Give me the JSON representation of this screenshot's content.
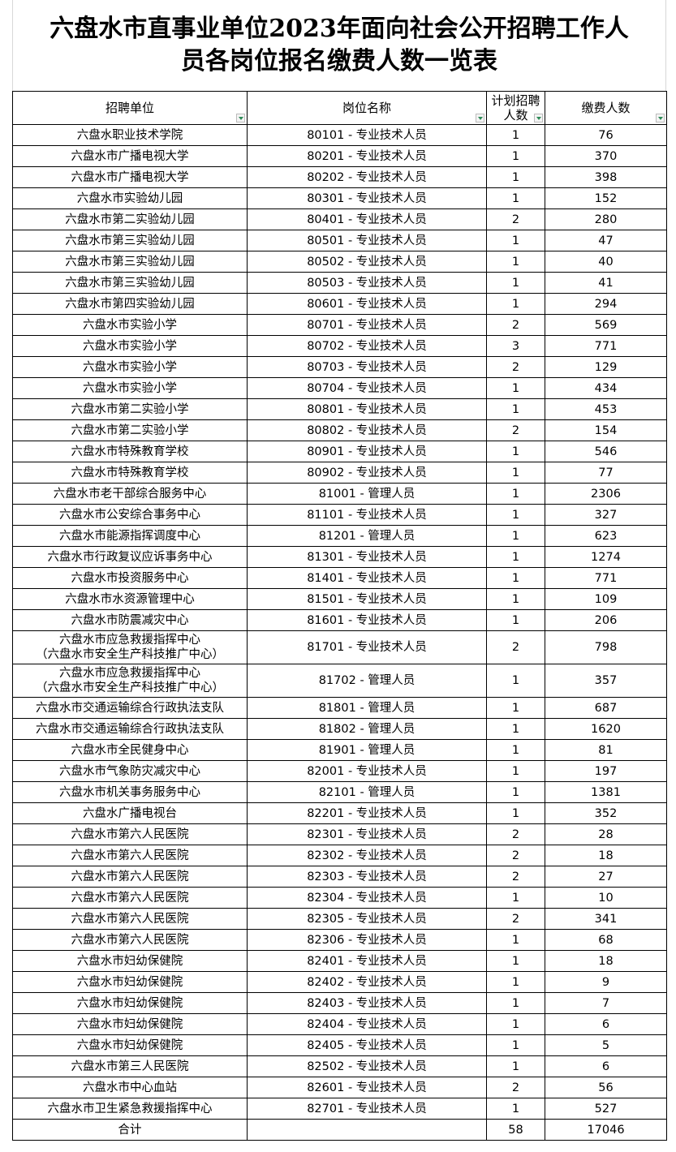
{
  "title": {
    "line1": "六盘水市直事业单位2023年面向社会公开招聘工作人",
    "line2": "员各岗位报名缴费人数一览表"
  },
  "columns": [
    {
      "line1": "招聘单位",
      "line2": ""
    },
    {
      "line1": "岗位名称",
      "line2": ""
    },
    {
      "line1": "计划招聘",
      "line2": "人数"
    },
    {
      "line1": "缴费人数",
      "line2": ""
    }
  ],
  "filter_icon_color": "#2e8b57",
  "rows": [
    {
      "unit": "六盘水职业技术学院",
      "post": "80101 - 专业技术人员",
      "plan": "1",
      "paid": "76"
    },
    {
      "unit": "六盘水市广播电视大学",
      "post": "80201 - 专业技术人员",
      "plan": "1",
      "paid": "370"
    },
    {
      "unit": "六盘水市广播电视大学",
      "post": "80202 - 专业技术人员",
      "plan": "1",
      "paid": "398"
    },
    {
      "unit": "六盘水市实验幼儿园",
      "post": "80301 - 专业技术人员",
      "plan": "1",
      "paid": "152"
    },
    {
      "unit": "六盘水市第二实验幼儿园",
      "post": "80401 - 专业技术人员",
      "plan": "2",
      "paid": "280"
    },
    {
      "unit": "六盘水市第三实验幼儿园",
      "post": "80501 - 专业技术人员",
      "plan": "1",
      "paid": "47"
    },
    {
      "unit": "六盘水市第三实验幼儿园",
      "post": "80502 - 专业技术人员",
      "plan": "1",
      "paid": "40"
    },
    {
      "unit": "六盘水市第三实验幼儿园",
      "post": "80503 - 专业技术人员",
      "plan": "1",
      "paid": "41"
    },
    {
      "unit": "六盘水市第四实验幼儿园",
      "post": "80601 - 专业技术人员",
      "plan": "1",
      "paid": "294"
    },
    {
      "unit": "六盘水市实验小学",
      "post": "80701 - 专业技术人员",
      "plan": "2",
      "paid": "569"
    },
    {
      "unit": "六盘水市实验小学",
      "post": "80702 - 专业技术人员",
      "plan": "3",
      "paid": "771"
    },
    {
      "unit": "六盘水市实验小学",
      "post": "80703 - 专业技术人员",
      "plan": "2",
      "paid": "129"
    },
    {
      "unit": "六盘水市实验小学",
      "post": "80704 - 专业技术人员",
      "plan": "1",
      "paid": "434"
    },
    {
      "unit": "六盘水市第二实验小学",
      "post": "80801 - 专业技术人员",
      "plan": "1",
      "paid": "453"
    },
    {
      "unit": "六盘水市第二实验小学",
      "post": "80802 - 专业技术人员",
      "plan": "2",
      "paid": "154"
    },
    {
      "unit": "六盘水市特殊教育学校",
      "post": "80901 - 专业技术人员",
      "plan": "1",
      "paid": "546"
    },
    {
      "unit": "六盘水市特殊教育学校",
      "post": "80902 - 专业技术人员",
      "plan": "1",
      "paid": "77"
    },
    {
      "unit": "六盘水市老干部综合服务中心",
      "post": "81001 - 管理人员",
      "plan": "1",
      "paid": "2306"
    },
    {
      "unit": "六盘水市公安综合事务中心",
      "post": "81101 - 专业技术人员",
      "plan": "1",
      "paid": "327"
    },
    {
      "unit": "六盘水市能源指挥调度中心",
      "post": "81201 - 管理人员",
      "plan": "1",
      "paid": "623"
    },
    {
      "unit": "六盘水市行政复议应诉事务中心",
      "post": "81301 - 专业技术人员",
      "plan": "1",
      "paid": "1274"
    },
    {
      "unit": "六盘水市投资服务中心",
      "post": "81401 - 专业技术人员",
      "plan": "1",
      "paid": "771"
    },
    {
      "unit": "六盘水市水资源管理中心",
      "post": "81501 - 专业技术人员",
      "plan": "1",
      "paid": "109"
    },
    {
      "unit": "六盘水市防震减灾中心",
      "post": "81601 - 专业技术人员",
      "plan": "1",
      "paid": "206"
    },
    {
      "unit": "六盘水市应急救援指挥中心",
      "unit2": "（六盘水市安全生产科技推广中心）",
      "post": "81701 - 专业技术人员",
      "plan": "2",
      "paid": "798"
    },
    {
      "unit": "六盘水市应急救援指挥中心",
      "unit2": "（六盘水市安全生产科技推广中心）",
      "post": "81702 - 管理人员",
      "plan": "1",
      "paid": "357"
    },
    {
      "unit": "六盘水市交通运输综合行政执法支队",
      "post": "81801 - 管理人员",
      "plan": "1",
      "paid": "687"
    },
    {
      "unit": "六盘水市交通运输综合行政执法支队",
      "post": "81802 - 管理人员",
      "plan": "1",
      "paid": "1620"
    },
    {
      "unit": "六盘水市全民健身中心",
      "post": "81901 - 管理人员",
      "plan": "1",
      "paid": "81"
    },
    {
      "unit": "六盘水市气象防灾减灾中心",
      "post": "82001 - 专业技术人员",
      "plan": "1",
      "paid": "197"
    },
    {
      "unit": "六盘水市机关事务服务中心",
      "post": "82101 - 管理人员",
      "plan": "1",
      "paid": "1381"
    },
    {
      "unit": "六盘水广播电视台",
      "post": "82201 - 专业技术人员",
      "plan": "1",
      "paid": "352"
    },
    {
      "unit": "六盘水市第六人民医院",
      "post": "82301 - 专业技术人员",
      "plan": "2",
      "paid": "28"
    },
    {
      "unit": "六盘水市第六人民医院",
      "post": "82302 - 专业技术人员",
      "plan": "2",
      "paid": "18"
    },
    {
      "unit": "六盘水市第六人民医院",
      "post": "82303 - 专业技术人员",
      "plan": "2",
      "paid": "27"
    },
    {
      "unit": "六盘水市第六人民医院",
      "post": "82304 - 专业技术人员",
      "plan": "1",
      "paid": "10"
    },
    {
      "unit": "六盘水市第六人民医院",
      "post": "82305 - 专业技术人员",
      "plan": "2",
      "paid": "341"
    },
    {
      "unit": "六盘水市第六人民医院",
      "post": "82306 - 专业技术人员",
      "plan": "1",
      "paid": "68"
    },
    {
      "unit": "六盘水市妇幼保健院",
      "post": "82401 - 专业技术人员",
      "plan": "1",
      "paid": "18"
    },
    {
      "unit": "六盘水市妇幼保健院",
      "post": "82402 - 专业技术人员",
      "plan": "1",
      "paid": "9"
    },
    {
      "unit": "六盘水市妇幼保健院",
      "post": "82403 - 专业技术人员",
      "plan": "1",
      "paid": "7"
    },
    {
      "unit": "六盘水市妇幼保健院",
      "post": "82404 - 专业技术人员",
      "plan": "1",
      "paid": "6"
    },
    {
      "unit": "六盘水市妇幼保健院",
      "post": "82405 - 专业技术人员",
      "plan": "1",
      "paid": "5"
    },
    {
      "unit": "六盘水市第三人民医院",
      "post": "82502 - 专业技术人员",
      "plan": "1",
      "paid": "6"
    },
    {
      "unit": "六盘水市中心血站",
      "post": "82601 - 专业技术人员",
      "plan": "2",
      "paid": "56"
    },
    {
      "unit": "六盘水市卫生紧急救援指挥中心",
      "post": "82701 - 专业技术人员",
      "plan": "1",
      "paid": "527"
    }
  ],
  "total": {
    "label": "合计",
    "post": "",
    "plan": "58",
    "paid": "17046"
  }
}
